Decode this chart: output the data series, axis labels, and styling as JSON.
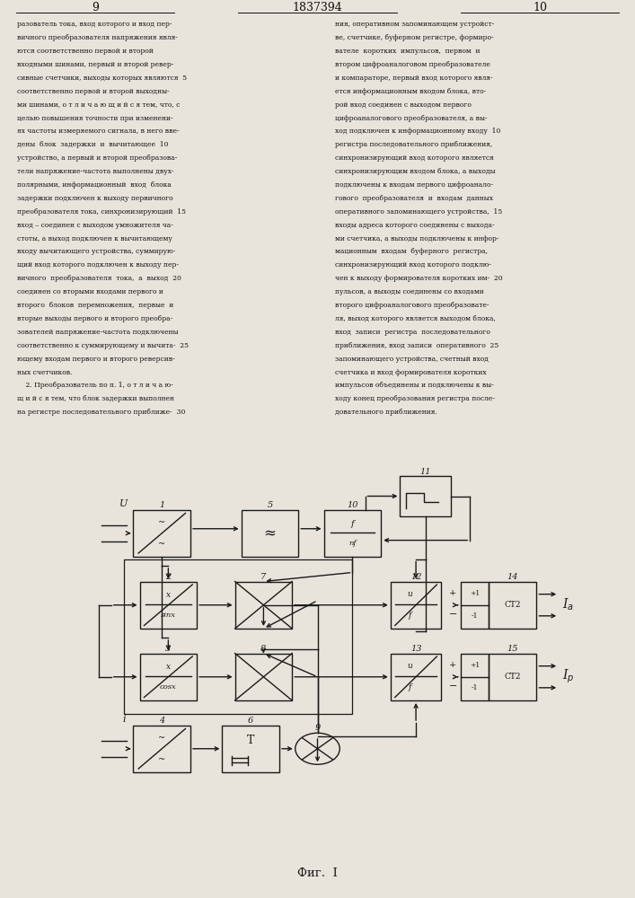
{
  "page_left": "9",
  "page_center": "1837394",
  "page_right": "10",
  "bg_color": "#e8e4dc",
  "text_color": "#111111",
  "text_left": [
    "разователь тока, вход которого и вход пер-",
    "вичного преобразователя напряжения явля-",
    "ются соответственно первой и второй",
    "входными шинами, первый и второй ревер-",
    "сивные счетчики, выходы которых являются  5",
    "соответственно первой и второй выходны-",
    "ми шинами, о т л и ч а ю щ и й с я тем, что, с",
    "целью повышения точности при изменени-",
    "ях частоты измеряемого сигнала, в него вве-",
    "дены  блок  задержки  и  вычитающее  10",
    "устройство, а первый и второй преобразова-",
    "тели напряжение-частота выполнены двух-",
    "полярными, информационный  вход  блока",
    "задержки подключен к выходу первичного",
    "преобразователя тока, синхронизирующий  15",
    "вход – соединен с выходом умножителя ча-",
    "стоты, а выход подключен к вычитающему",
    "входу вычитающего устройства, суммирую-",
    "щий вход которого подключен к выходу пер-",
    "вичного  преобразователя  тока,  а  выход  20",
    "соединен со вторыми входами первого и",
    "второго  блоков  перемножения,  первые  и",
    "вторые выходы первого и второго преобра-",
    "зователей напряжение-частота подключены",
    "соответственно к суммирующему и вычита-  25",
    "ющему входам первого и второго реверсив-",
    "ных счетчиков.",
    "    2. Преобразователь по п. 1, о т л и ч а ю-",
    "щ и й с я тем, что блок задержки выполнен",
    "на регистре последовательного приближе-  30"
  ],
  "text_right": [
    "ния, оперативном запоминающем устройст-",
    "ве, счетчике, буферном регистре, формиро-",
    "вателе  коротких  импульсов,  первом  и",
    "втором цифроаналоговом преобразователе",
    "и компараторе, первый вход которого явля-",
    "ется информационным входом блока, вто-",
    "рой вход соединен с выходом первого",
    "цифроаналогового преобразователя, а вы-",
    "ход подключен к информационному входу  10",
    "регистра последовательного приближения,",
    "синхронизирующий вход которого является",
    "синхронизирующим входом блока, а выходы",
    "подключены к входам первого цифроанало-",
    "гового  преобразователя  и  входам  данных",
    "оперативного запоминающего устройства,  15",
    "входы адреса которого соединены с выхода-",
    "ми счетчика, а выходы подключены к инфор-",
    "мационным  входам  буферного  регистра,",
    "синхронизирующий вход которого подклю-",
    "чен к выходу формирователя коротких им-  20",
    "пульсов, а выходы соединены со входами",
    "второго цифроаналогового преобразовате-",
    "ля, выход которого является выходом блока,",
    "вход  записи  регистра  последовательного",
    "приближения, вход записи  оперативного  25",
    "запоминающего устройства, счетный вход",
    "счетчика и вход формирователя коротких",
    "импульсов объединены и подключены к вы-",
    "ходу конец преобразования регистра после-",
    "довательного приближения."
  ],
  "fig_caption": "Фиг.  I"
}
